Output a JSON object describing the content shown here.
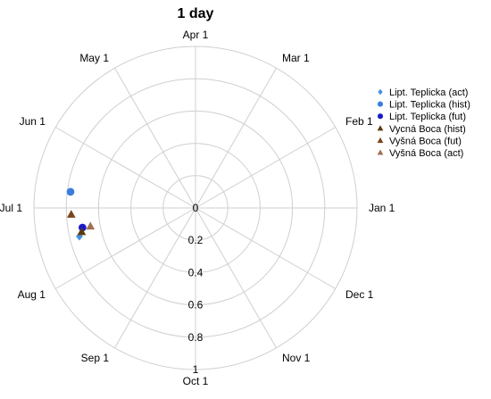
{
  "chart_data": {
    "type": "scatter",
    "subtype": "polar",
    "title": "1 day",
    "angular_axis": {
      "labels": [
        "Jan 1",
        "Feb 1",
        "Mar 1",
        "Apr 1",
        "May 1",
        "Jun 1",
        "Jul 1",
        "Aug 1",
        "Sep 1",
        "Oct 1",
        "Nov 1",
        "Dec 1"
      ],
      "direction": "counterclockwise",
      "zero_at": "east"
    },
    "radial_axis": {
      "range": [
        0,
        1
      ],
      "ticks": [
        0,
        0.2,
        0.4,
        0.6,
        0.8,
        1
      ],
      "tick_labels": [
        "0",
        "0.2",
        "0.4",
        "0.6",
        "0.8",
        "1"
      ],
      "direction": "downward"
    },
    "grid": true,
    "legend_position": "right",
    "series": [
      {
        "name": "Lipt. Teplicka (act)",
        "marker": "diamond",
        "color": "#4a90e2",
        "points": [
          {
            "date": "Jul 15",
            "r": 0.74
          }
        ]
      },
      {
        "name": "Lipt. Teplicka (hist)",
        "marker": "circle",
        "color": "#3b7ddd",
        "points": [
          {
            "date": "Jun 24",
            "r": 0.78
          }
        ]
      },
      {
        "name": "Lipt. Teplicka (fut)",
        "marker": "circle",
        "color": "#1a1acc",
        "points": [
          {
            "date": "Jul 11",
            "r": 0.71
          }
        ]
      },
      {
        "name": "Vycná Boca (hist)",
        "marker": "triangle",
        "color": "#5a3a10",
        "points": [
          {
            "date": "Jul 13",
            "r": 0.72
          }
        ]
      },
      {
        "name": "Vyšná Boca (fut)",
        "marker": "triangle",
        "color": "#7a4418",
        "points": [
          {
            "date": "Jul 4",
            "r": 0.77
          }
        ]
      },
      {
        "name": "Vyšná Boca (act)",
        "marker": "triangle",
        "color": "#a07050",
        "points": [
          {
            "date": "Jul 11",
            "r": 0.66
          }
        ]
      }
    ]
  }
}
